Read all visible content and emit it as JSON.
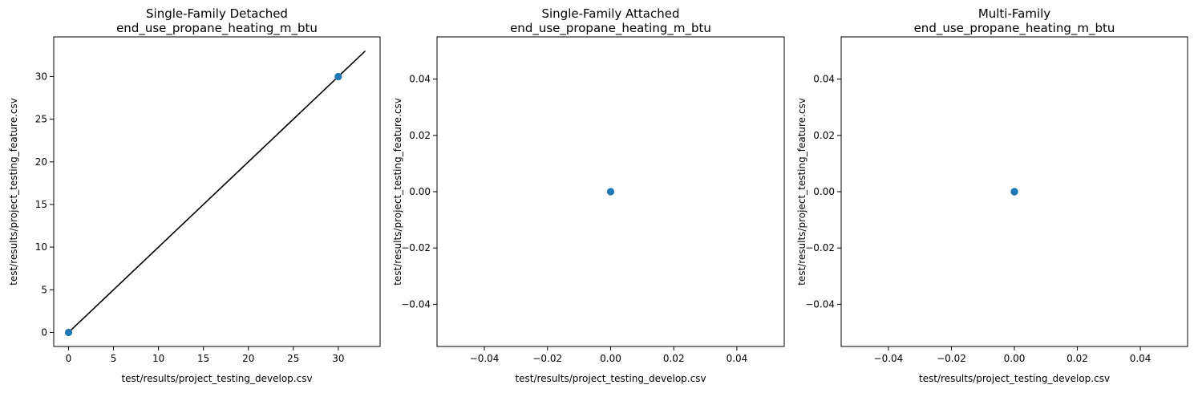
{
  "chart_data": [
    {
      "type": "scatter",
      "title": "Single-Family Detached",
      "subtitle": "end_use_propane_heating_m_btu",
      "xlabel": "test/results/project_testing_develop.csv",
      "ylabel": "test/results/project_testing_feature.csv",
      "xlim": [
        -1.65,
        34.65
      ],
      "ylim": [
        -1.65,
        34.65
      ],
      "xticks": [
        0,
        5,
        10,
        15,
        20,
        25,
        30
      ],
      "yticks": [
        0,
        5,
        10,
        15,
        20,
        25,
        30
      ],
      "tick_format": "int",
      "points": [
        {
          "x": 0,
          "y": 0
        },
        {
          "x": 30,
          "y": 30
        }
      ],
      "reference_line": {
        "from": [
          0,
          0
        ],
        "to": [
          33,
          33
        ],
        "color": "#000000"
      },
      "marker_color": "#1f77b4",
      "grid": false,
      "legend": "none"
    },
    {
      "type": "scatter",
      "title": "Single-Family Attached",
      "subtitle": "end_use_propane_heating_m_btu",
      "xlabel": "test/results/project_testing_develop.csv",
      "ylabel": "test/results/project_testing_feature.csv",
      "xlim": [
        -0.055,
        0.055
      ],
      "ylim": [
        -0.055,
        0.055
      ],
      "xticks": [
        -0.04,
        -0.02,
        0.0,
        0.02,
        0.04
      ],
      "yticks": [
        -0.04,
        -0.02,
        0.0,
        0.02,
        0.04
      ],
      "tick_format": "fixed2",
      "points": [
        {
          "x": 0,
          "y": 0
        }
      ],
      "marker_color": "#1f77b4",
      "grid": false,
      "legend": "none"
    },
    {
      "type": "scatter",
      "title": "Multi-Family",
      "subtitle": "end_use_propane_heating_m_btu",
      "xlabel": "test/results/project_testing_develop.csv",
      "ylabel": "test/results/project_testing_feature.csv",
      "xlim": [
        -0.055,
        0.055
      ],
      "ylim": [
        -0.055,
        0.055
      ],
      "xticks": [
        -0.04,
        -0.02,
        0.0,
        0.02,
        0.04
      ],
      "yticks": [
        -0.04,
        -0.02,
        0.0,
        0.02,
        0.04
      ],
      "tick_format": "fixed2",
      "points": [
        {
          "x": 0,
          "y": 0
        },
        {
          "x": 0,
          "y": 0
        },
        {
          "x": 0,
          "y": 0
        }
      ],
      "marker_color": "#1f77b4",
      "grid": false,
      "legend": "none"
    }
  ]
}
